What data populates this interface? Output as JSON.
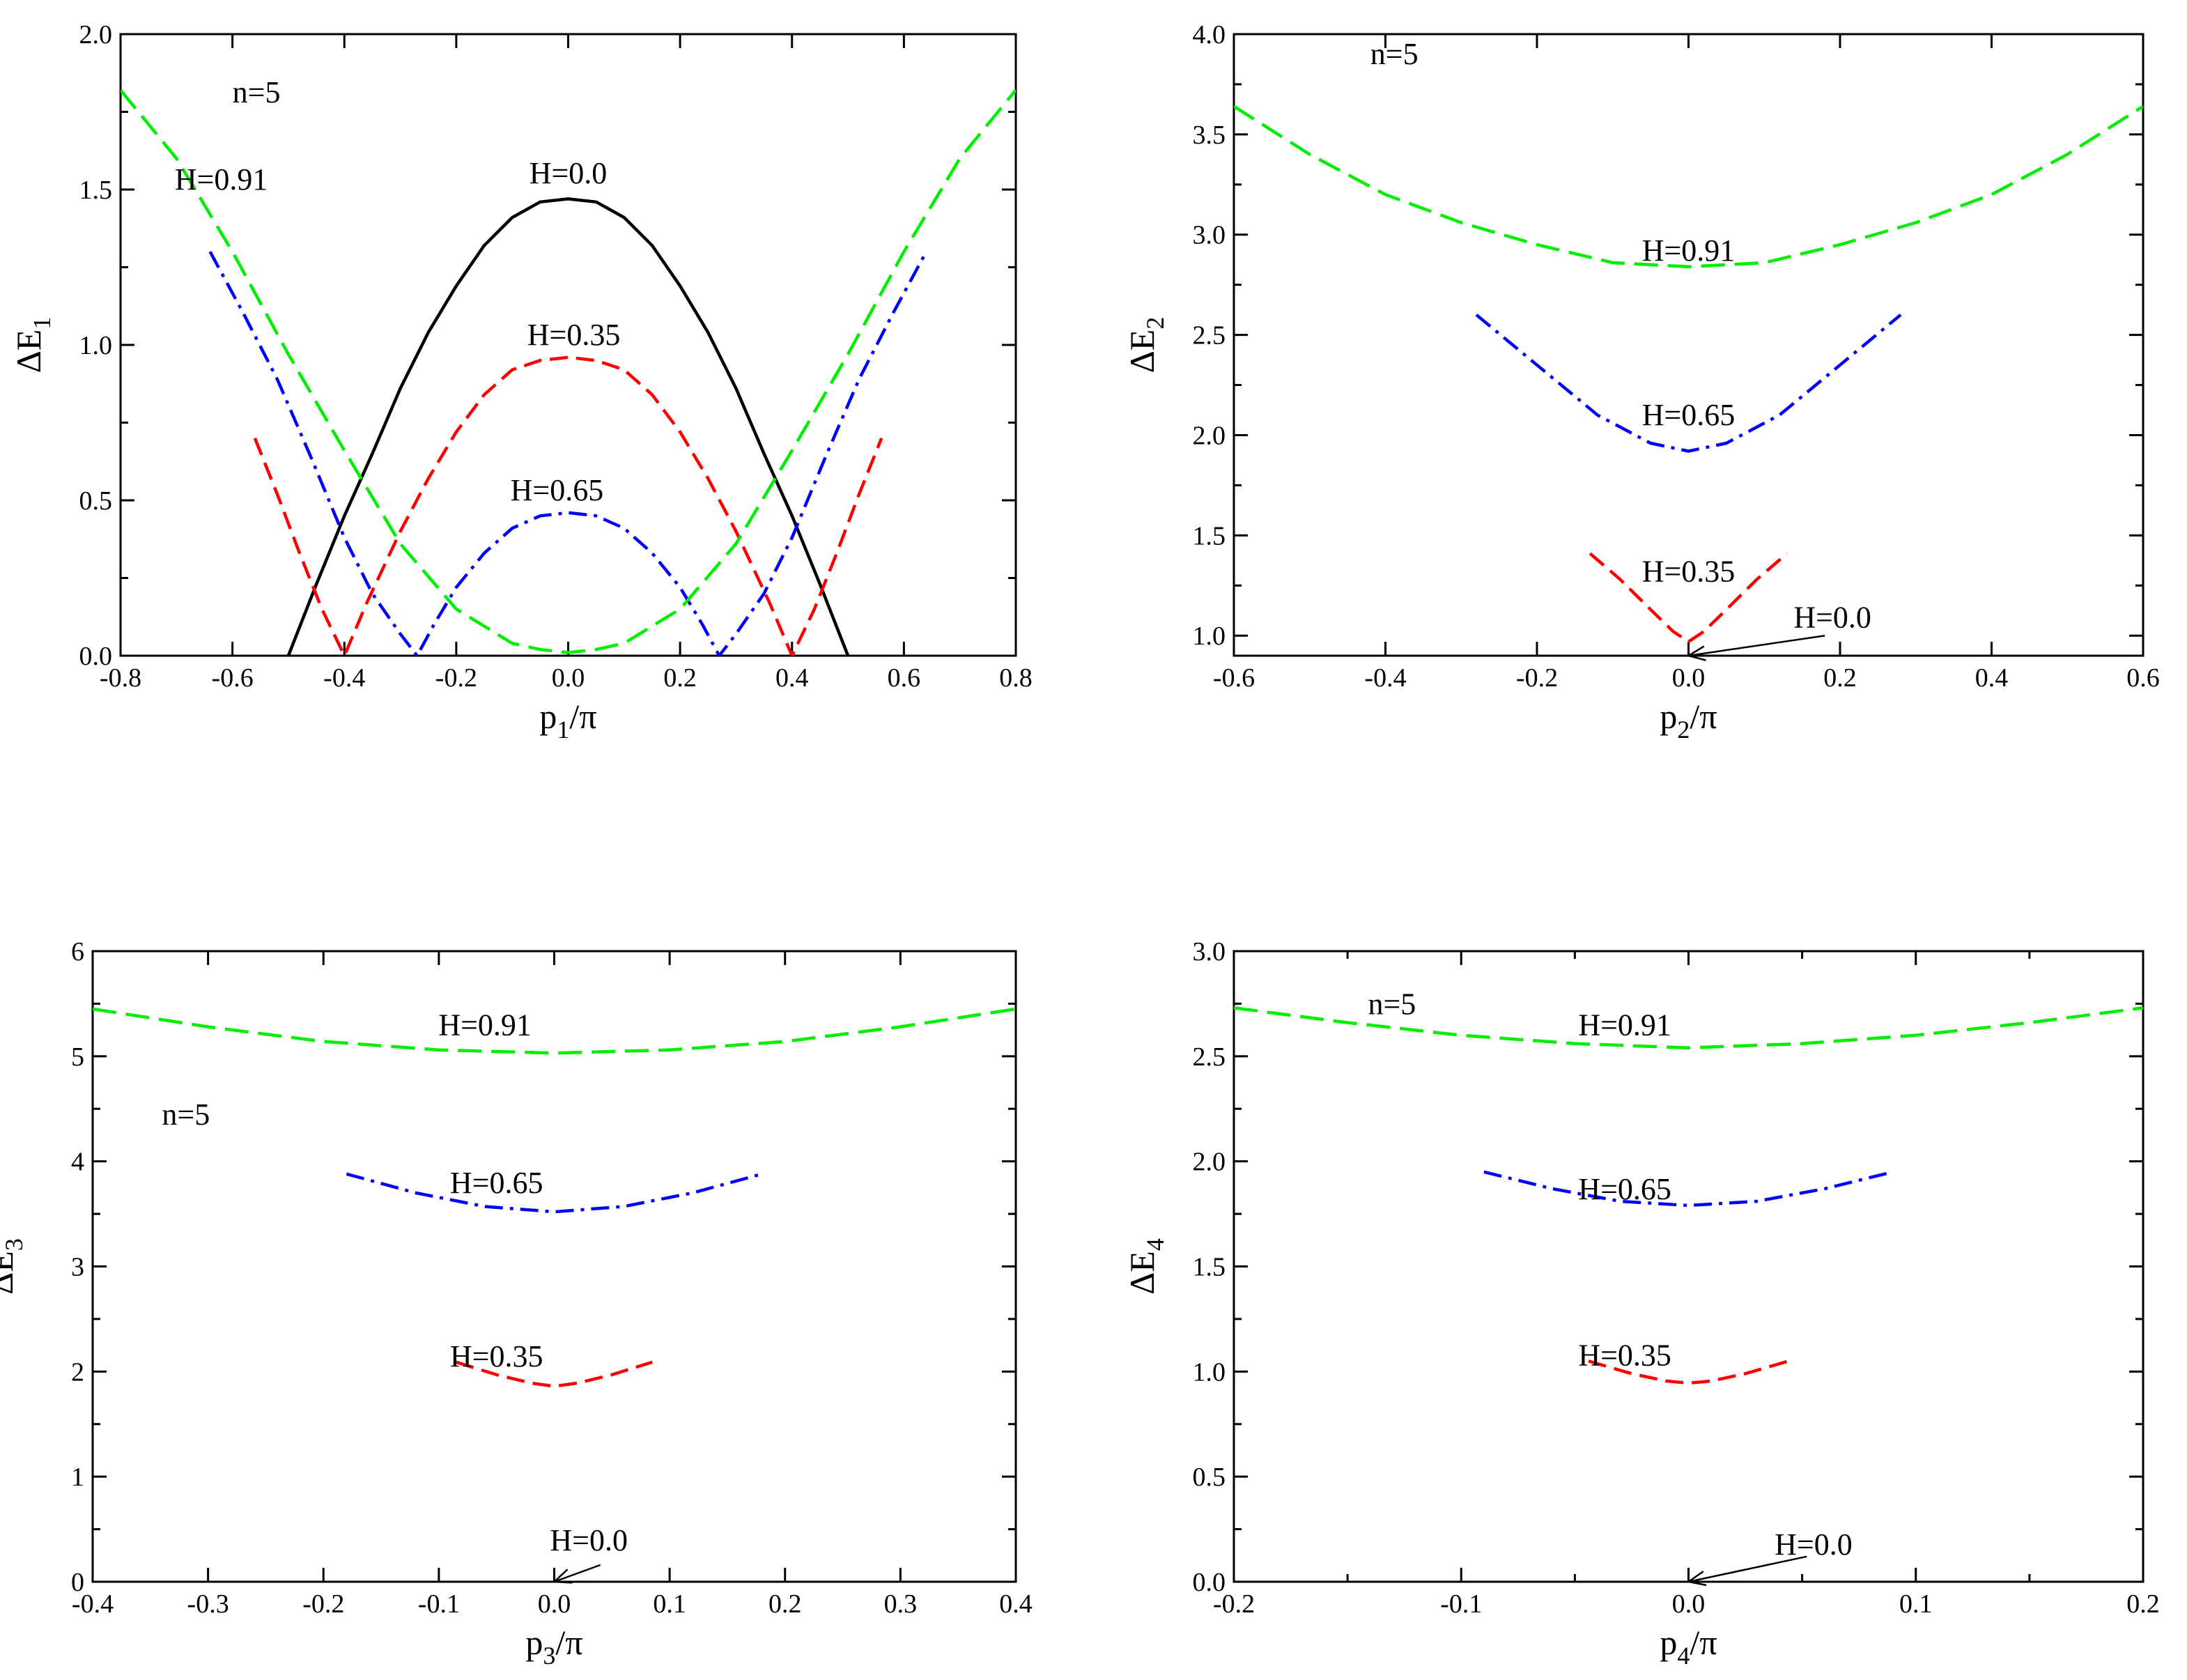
{
  "chart_data": [
    {
      "id": "p1",
      "type": "line",
      "xlabel_main": "p",
      "xlabel_sub": "1",
      "xlabel_tail": "/π",
      "ylabel_main": "ΔE",
      "ylabel_sub": "1",
      "xlim": [
        -0.8,
        0.8
      ],
      "ylim": [
        0,
        2.0
      ],
      "xticks": [
        -0.8,
        -0.6,
        -0.4,
        -0.2,
        0.0,
        0.2,
        0.4,
        0.6,
        0.8
      ],
      "xtick_labels": [
        "-0.8",
        "-0.6",
        "-0.4",
        "-0.2",
        "0.0",
        "0.2",
        "0.4",
        "0.6",
        "0.8"
      ],
      "yticks": [
        0,
        0.5,
        1.0,
        1.5,
        2.0
      ],
      "ytick_labels": [
        "0.0",
        "0.5",
        "1.0",
        "1.5",
        "2.0"
      ],
      "yminor": [
        0.25,
        0.75,
        1.25,
        1.75
      ],
      "n_label": "n=5",
      "series": [
        {
          "name": "H=0.0",
          "color": "#000000",
          "style": "solid",
          "x": [
            -0.5,
            -0.45,
            -0.4,
            -0.35,
            -0.3,
            -0.25,
            -0.2,
            -0.15,
            -0.1,
            -0.05,
            0.0,
            0.05,
            0.1,
            0.15,
            0.2,
            0.25,
            0.3,
            0.35,
            0.4,
            0.45,
            0.5
          ],
          "y": [
            0.0,
            0.23,
            0.45,
            0.65,
            0.86,
            1.04,
            1.19,
            1.32,
            1.41,
            1.46,
            1.47,
            1.46,
            1.41,
            1.32,
            1.19,
            1.04,
            0.86,
            0.65,
            0.45,
            0.23,
            0.0
          ]
        },
        {
          "name": "H=0.35",
          "color": "#ff0000",
          "style": "dash",
          "x": [
            -0.56,
            -0.52,
            -0.48,
            -0.44,
            -0.4,
            -0.36,
            -0.3,
            -0.25,
            -0.2,
            -0.15,
            -0.1,
            -0.05,
            0.0,
            0.05,
            0.1,
            0.15,
            0.2,
            0.25,
            0.3,
            0.36,
            0.4,
            0.44,
            0.48,
            0.52,
            0.56
          ],
          "y": [
            0.7,
            0.52,
            0.33,
            0.15,
            0.0,
            0.17,
            0.4,
            0.57,
            0.72,
            0.84,
            0.92,
            0.95,
            0.96,
            0.95,
            0.92,
            0.84,
            0.72,
            0.57,
            0.4,
            0.17,
            0.0,
            0.15,
            0.33,
            0.52,
            0.7
          ]
        },
        {
          "name": "H=0.65",
          "color": "#0000ff",
          "style": "dashdot",
          "x": [
            -0.64,
            -0.58,
            -0.52,
            -0.46,
            -0.4,
            -0.35,
            -0.3,
            -0.27,
            -0.24,
            -0.2,
            -0.15,
            -0.1,
            -0.05,
            0.0,
            0.05,
            0.1,
            0.15,
            0.2,
            0.24,
            0.27,
            0.3,
            0.35,
            0.4,
            0.46,
            0.52,
            0.58,
            0.64
          ],
          "y": [
            1.3,
            1.1,
            0.89,
            0.64,
            0.38,
            0.2,
            0.07,
            0.0,
            0.1,
            0.22,
            0.33,
            0.41,
            0.45,
            0.46,
            0.45,
            0.41,
            0.33,
            0.22,
            0.1,
            0.0,
            0.07,
            0.2,
            0.38,
            0.64,
            0.89,
            1.1,
            1.3
          ]
        },
        {
          "name": "H=0.91",
          "color": "#00ee00",
          "style": "longdash",
          "x": [
            -0.8,
            -0.7,
            -0.6,
            -0.5,
            -0.4,
            -0.3,
            -0.2,
            -0.1,
            -0.05,
            0.0,
            0.05,
            0.1,
            0.2,
            0.3,
            0.4,
            0.5,
            0.6,
            0.7,
            0.8
          ],
          "y": [
            1.82,
            1.6,
            1.3,
            0.97,
            0.66,
            0.36,
            0.15,
            0.04,
            0.02,
            0.01,
            0.02,
            0.04,
            0.15,
            0.36,
            0.66,
            0.97,
            1.3,
            1.6,
            1.82
          ]
        }
      ],
      "annotations": [
        {
          "text": "H=0.91",
          "x": -0.62,
          "y": 1.5
        },
        {
          "text": "H=0.0",
          "x": 0.0,
          "y": 1.52
        },
        {
          "text": "H=0.35",
          "x": 0.01,
          "y": 1.0
        },
        {
          "text": "H=0.65",
          "x": -0.02,
          "y": 0.5
        },
        {
          "text": "n=5",
          "x": -0.6,
          "y": 1.78
        }
      ]
    },
    {
      "id": "p2",
      "type": "line",
      "xlabel_main": "p",
      "xlabel_sub": "2",
      "xlabel_tail": "/π",
      "ylabel_main": "ΔE",
      "ylabel_sub": "2",
      "xlim": [
        -0.6,
        0.6
      ],
      "ylim": [
        0.9,
        4.0
      ],
      "xticks": [
        -0.6,
        -0.4,
        -0.2,
        0.0,
        0.2,
        0.4,
        0.6
      ],
      "xtick_labels": [
        "-0.6",
        "-0.4",
        "-0.2",
        "0.0",
        "0.2",
        "0.4",
        "0.6"
      ],
      "yticks": [
        1.0,
        1.5,
        2.0,
        2.5,
        3.0,
        3.5,
        4.0
      ],
      "ytick_labels": [
        "1.0",
        "1.5",
        "2.0",
        "2.5",
        "3.0",
        "3.5",
        "4.0"
      ],
      "yminor": [
        1.25,
        1.75,
        2.25,
        2.75,
        3.25,
        3.75
      ],
      "n_label": "n=5",
      "series": [
        {
          "name": "H=0.91",
          "color": "#00ee00",
          "style": "longdash",
          "x": [
            -0.6,
            -0.5,
            -0.4,
            -0.3,
            -0.2,
            -0.1,
            0.0,
            0.1,
            0.2,
            0.3,
            0.4,
            0.5,
            0.6
          ],
          "y": [
            3.64,
            3.4,
            3.2,
            3.06,
            2.95,
            2.86,
            2.84,
            2.86,
            2.95,
            3.06,
            3.2,
            3.4,
            3.64
          ]
        },
        {
          "name": "H=0.65",
          "color": "#0000ff",
          "style": "dashdot",
          "x": [
            -0.28,
            -0.2,
            -0.12,
            -0.05,
            0.0,
            0.05,
            0.12,
            0.2,
            0.28
          ],
          "y": [
            2.6,
            2.35,
            2.1,
            1.96,
            1.92,
            1.96,
            2.1,
            2.35,
            2.6
          ]
        },
        {
          "name": "H=0.35",
          "color": "#ff0000",
          "style": "dash",
          "x": [
            -0.13,
            -0.09,
            -0.05,
            -0.02,
            0.0,
            0.02,
            0.05,
            0.09,
            0.13
          ],
          "y": [
            1.41,
            1.28,
            1.13,
            1.02,
            0.97,
            1.02,
            1.13,
            1.28,
            1.41
          ]
        }
      ],
      "annotations": [
        {
          "text": "H=0.91",
          "x": 0.0,
          "y": 2.87
        },
        {
          "text": "H=0.65",
          "x": 0.0,
          "y": 2.05
        },
        {
          "text": "H=0.35",
          "x": 0.0,
          "y": 1.27
        },
        {
          "text": "H=0.0",
          "x": 0.19,
          "y": 1.04
        },
        {
          "text": "n=5",
          "x": -0.42,
          "y": 3.85
        }
      ],
      "arrow": {
        "from": [
          0.18,
          1.0
        ],
        "to": [
          0.0,
          0.9
        ]
      }
    },
    {
      "id": "p3",
      "type": "line",
      "xlabel_main": "p",
      "xlabel_sub": "3",
      "xlabel_tail": "/π",
      "ylabel_main": "ΔE",
      "ylabel_sub": "3",
      "xlim": [
        -0.4,
        0.4
      ],
      "ylim": [
        0,
        6
      ],
      "xticks": [
        -0.4,
        -0.3,
        -0.2,
        -0.1,
        0.0,
        0.1,
        0.2,
        0.3,
        0.4
      ],
      "xtick_labels": [
        "-0.4",
        "-0.3",
        "-0.2",
        "-0.1",
        "0.0",
        "0.1",
        "0.2",
        "0.3",
        "0.4"
      ],
      "yticks": [
        0,
        1,
        2,
        3,
        4,
        5,
        6
      ],
      "ytick_labels": [
        "0",
        "1",
        "2",
        "3",
        "4",
        "5",
        "6"
      ],
      "yminor": [
        0.5,
        1.5,
        2.5,
        3.5,
        4.5,
        5.5
      ],
      "n_label": "n=5",
      "series": [
        {
          "name": "H=0.91",
          "color": "#00ee00",
          "style": "longdash",
          "x": [
            -0.4,
            -0.3,
            -0.2,
            -0.1,
            0.0,
            0.1,
            0.2,
            0.3,
            0.4
          ],
          "y": [
            5.45,
            5.28,
            5.14,
            5.06,
            5.03,
            5.06,
            5.14,
            5.28,
            5.45
          ]
        },
        {
          "name": "H=0.65",
          "color": "#0000ff",
          "style": "dashdot",
          "x": [
            -0.18,
            -0.12,
            -0.06,
            0.0,
            0.06,
            0.12,
            0.18
          ],
          "y": [
            3.88,
            3.7,
            3.57,
            3.52,
            3.57,
            3.7,
            3.88
          ]
        },
        {
          "name": "H=0.35",
          "color": "#ff0000",
          "style": "dash",
          "x": [
            -0.085,
            -0.05,
            -0.02,
            0.0,
            0.02,
            0.05,
            0.085
          ],
          "y": [
            2.09,
            1.97,
            1.89,
            1.86,
            1.89,
            1.97,
            2.09
          ]
        }
      ],
      "annotations": [
        {
          "text": "H=0.91",
          "x": -0.06,
          "y": 5.2
        },
        {
          "text": "H=0.65",
          "x": -0.05,
          "y": 3.7
        },
        {
          "text": "H=0.35",
          "x": -0.05,
          "y": 2.05
        },
        {
          "text": "H=0.0",
          "x": 0.03,
          "y": 0.3
        },
        {
          "text": "n=5",
          "x": -0.34,
          "y": 4.35
        }
      ],
      "arrow": {
        "from": [
          0.04,
          0.16
        ],
        "to": [
          0.0,
          0.0
        ]
      }
    },
    {
      "id": "p4",
      "type": "line",
      "xlabel_main": "p",
      "xlabel_sub": "4",
      "xlabel_tail": "/π",
      "ylabel_main": "ΔE",
      "ylabel_sub": "4",
      "xlim": [
        -0.2,
        0.2
      ],
      "ylim": [
        0,
        3.0
      ],
      "xticks": [
        -0.2,
        -0.1,
        0.0,
        0.1,
        0.2
      ],
      "xtick_labels": [
        "-0.2",
        "-0.1",
        "0.0",
        "0.1",
        "0.2"
      ],
      "xminor": [
        -0.15,
        -0.05,
        0.05,
        0.15
      ],
      "yticks": [
        0,
        0.5,
        1.0,
        1.5,
        2.0,
        2.5,
        3.0
      ],
      "ytick_labels": [
        "0.0",
        "0.5",
        "1.0",
        "1.5",
        "2.0",
        "2.5",
        "3.0"
      ],
      "yminor": [
        0.25,
        0.75,
        1.25,
        1.75,
        2.25,
        2.75
      ],
      "n_label": "n=5",
      "series": [
        {
          "name": "H=0.91",
          "color": "#00ee00",
          "style": "longdash",
          "x": [
            -0.2,
            -0.15,
            -0.1,
            -0.05,
            0.0,
            0.05,
            0.1,
            0.15,
            0.2
          ],
          "y": [
            2.73,
            2.66,
            2.6,
            2.56,
            2.54,
            2.56,
            2.6,
            2.66,
            2.73
          ]
        },
        {
          "name": "H=0.65",
          "color": "#0000ff",
          "style": "dashdot",
          "x": [
            -0.09,
            -0.06,
            -0.03,
            0.0,
            0.03,
            0.06,
            0.09
          ],
          "y": [
            1.95,
            1.87,
            1.81,
            1.79,
            1.81,
            1.87,
            1.95
          ]
        },
        {
          "name": "H=0.35",
          "color": "#ff0000",
          "style": "dash",
          "x": [
            -0.044,
            -0.025,
            -0.01,
            0.0,
            0.01,
            0.025,
            0.044
          ],
          "y": [
            1.05,
            0.99,
            0.955,
            0.945,
            0.955,
            0.99,
            1.05
          ]
        }
      ],
      "annotations": [
        {
          "text": "H=0.91",
          "x": -0.028,
          "y": 2.6
        },
        {
          "text": "H=0.65",
          "x": -0.028,
          "y": 1.82
        },
        {
          "text": "H=0.35",
          "x": -0.028,
          "y": 1.03
        },
        {
          "text": "H=0.0",
          "x": 0.055,
          "y": 0.13
        },
        {
          "text": "n=5",
          "x": -0.141,
          "y": 2.7
        }
      ],
      "arrow": {
        "from": [
          0.052,
          0.12
        ],
        "to": [
          0.0,
          0.0
        ]
      }
    }
  ]
}
